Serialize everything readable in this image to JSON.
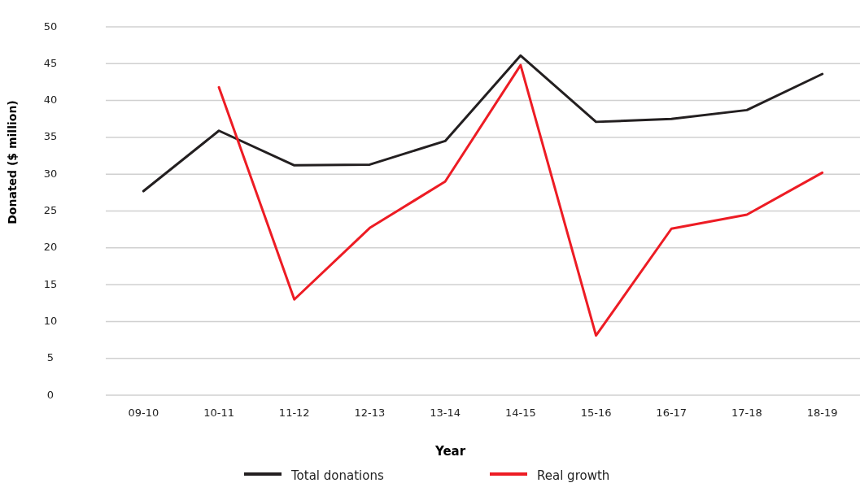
{
  "chart_data": {
    "type": "line",
    "xlabel": "Year",
    "ylabel": "Donated ($ million)",
    "categories": [
      "09-10",
      "10-11",
      "11-12",
      "12-13",
      "13-14",
      "14-15",
      "15-16",
      "16-17",
      "17-18",
      "18-19"
    ],
    "series": [
      {
        "name": "Total donations",
        "color": "#231f20",
        "values": [
          27.7,
          35.9,
          31.2,
          31.3,
          34.5,
          46.1,
          37.1,
          37.5,
          38.7,
          43.6
        ]
      },
      {
        "name": "Real growth",
        "color": "#ed1c24",
        "values": [
          null,
          41.8,
          13.0,
          22.7,
          29.0,
          44.8,
          8.1,
          22.6,
          24.5,
          30.2
        ]
      }
    ],
    "ylim": [
      0,
      50
    ],
    "yticks": [
      0,
      5,
      10,
      15,
      20,
      25,
      30,
      35,
      40,
      45,
      50
    ],
    "grid": "y",
    "legend": "bottom",
    "marker": "none",
    "line_style": "solid"
  }
}
